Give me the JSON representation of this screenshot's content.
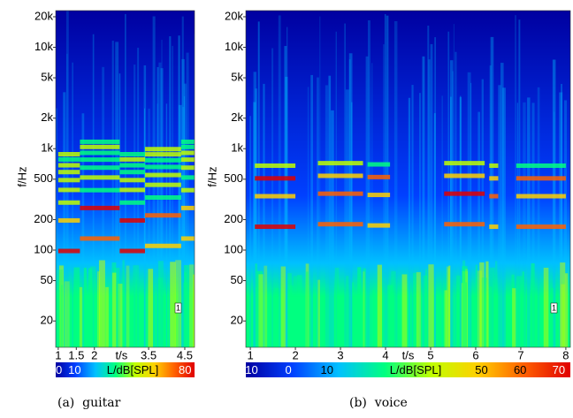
{
  "chart_data": [
    {
      "type": "spectrogram",
      "caption": "(a)  guitar",
      "ylabel": "f/Hz",
      "xlabel": "t/s",
      "log_y": true,
      "ylim": [
        11,
        23000
      ],
      "yticks": [
        {
          "value": 20,
          "label": "20"
        },
        {
          "value": 50,
          "label": "50"
        },
        {
          "value": 100,
          "label": "100"
        },
        {
          "value": 200,
          "label": "200"
        },
        {
          "value": 500,
          "label": "500"
        },
        {
          "value": 1000,
          "label": "1k"
        },
        {
          "value": 2000,
          "label": "2k"
        },
        {
          "value": 5000,
          "label": "5k"
        },
        {
          "value": 10000,
          "label": "10k"
        },
        {
          "value": 20000,
          "label": "20k"
        }
      ],
      "xlim": [
        0.93,
        4.77
      ],
      "xticks": [
        1,
        1.5,
        2,
        3.5,
        4.5
      ],
      "colorbar_label": "L/dB[SPL]",
      "colorbar_lim": [
        -2,
        86
      ],
      "colorbar_ticks": [
        0,
        10,
        80
      ],
      "colormap": [
        "#0000a0",
        "#0040ff",
        "#00c0ff",
        "#00ff80",
        "#c0ff00",
        "#ffd000",
        "#ff6000",
        "#e00000"
      ],
      "annotation": "1"
    },
    {
      "type": "spectrogram",
      "caption": "(b)  voice",
      "ylabel": "f/Hz",
      "xlabel": "t/s",
      "log_y": true,
      "ylim": [
        11,
        23000
      ],
      "yticks": [
        {
          "value": 20,
          "label": "20"
        },
        {
          "value": 50,
          "label": "50"
        },
        {
          "value": 100,
          "label": "100"
        },
        {
          "value": 200,
          "label": "200"
        },
        {
          "value": 500,
          "label": "500"
        },
        {
          "value": 1000,
          "label": "1k"
        },
        {
          "value": 2000,
          "label": "2k"
        },
        {
          "value": 5000,
          "label": "5k"
        },
        {
          "value": 10000,
          "label": "10k"
        },
        {
          "value": 20000,
          "label": "20k"
        }
      ],
      "xlim": [
        0.9,
        8.1
      ],
      "xticks": [
        1,
        2,
        3,
        4,
        5,
        6,
        7,
        8
      ],
      "colorbar_label": "L/dB[SPL]",
      "colorbar_lim": [
        -11,
        73
      ],
      "colorbar_ticks": [
        -10,
        0,
        10,
        50,
        60,
        70
      ],
      "colormap": [
        "#0000a0",
        "#0040ff",
        "#00c0ff",
        "#00ff80",
        "#c0ff00",
        "#ffd000",
        "#ff6000",
        "#e00000"
      ],
      "annotation": "1"
    }
  ]
}
